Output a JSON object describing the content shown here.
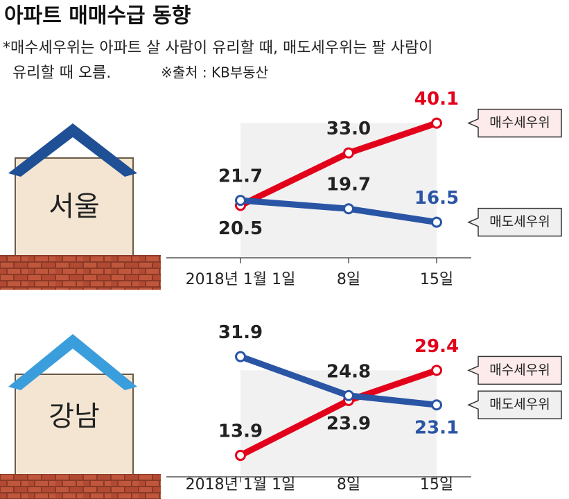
{
  "header": {
    "title": "아파트 매매수급 동향",
    "note_lines": [
      "*매수세우위는 아파트 살 사람이 유리할 때, 매도세우위는 팔 사람이",
      "유리할 때 오름."
    ],
    "source": "※출처 : KB부동산"
  },
  "chart_data": [
    {
      "type": "line",
      "region": "서울",
      "categories": [
        "2018년 1월 1일",
        "8일",
        "15일"
      ],
      "ylim": [
        10,
        45
      ],
      "series": [
        {
          "name": "매수세우위",
          "color": "#e2001a",
          "values": [
            20.5,
            33.0,
            40.1
          ],
          "value_labels": [
            "20.5",
            "33.0",
            "40.1"
          ]
        },
        {
          "name": "매도세우위",
          "color": "#2a55a5",
          "values": [
            21.7,
            19.7,
            16.5
          ],
          "value_labels": [
            "21.7",
            "19.7",
            "16.5"
          ]
        }
      ]
    },
    {
      "type": "line",
      "region": "강남",
      "categories": [
        "2018년 1월 1일",
        "8일",
        "15일"
      ],
      "ylim": [
        11,
        35
      ],
      "series": [
        {
          "name": "매수세우위",
          "color": "#e2001a",
          "values": [
            13.9,
            23.9,
            29.4
          ],
          "value_labels": [
            "13.9",
            "23.9",
            "29.4"
          ]
        },
        {
          "name": "매도세우위",
          "color": "#2a55a5",
          "values": [
            31.9,
            24.8,
            23.1
          ],
          "value_labels": [
            "31.9",
            "24.8",
            "23.1"
          ]
        }
      ]
    }
  ]
}
